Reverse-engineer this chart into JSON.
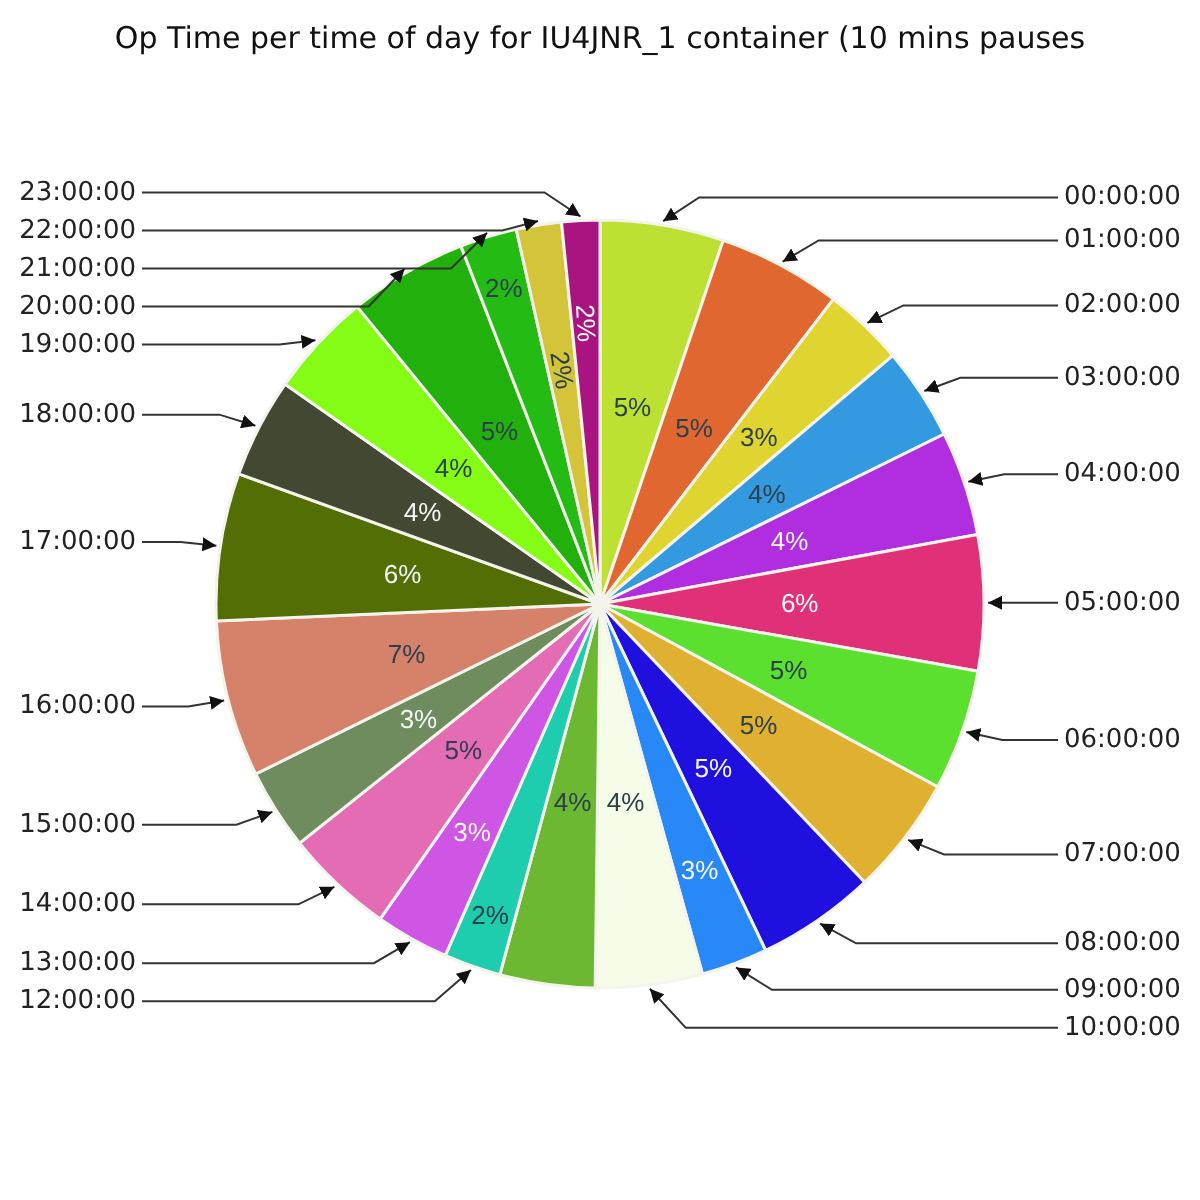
{
  "chart_data": {
    "type": "pie",
    "title": "Op Time per time of day for IU4JNR_1 container (10 mins pauses",
    "categories": [
      "00:00:00",
      "01:00:00",
      "02:00:00",
      "03:00:00",
      "04:00:00",
      "05:00:00",
      "06:00:00",
      "07:00:00",
      "08:00:00",
      "09:00:00",
      "10:00:00",
      null,
      "12:00:00",
      "13:00:00",
      "14:00:00",
      "15:00:00",
      "16:00:00",
      "17:00:00",
      "18:00:00",
      "19:00:00",
      "20:00:00",
      "21:00:00",
      "22:00:00",
      "23:00:00"
    ],
    "values": [
      5.2,
      5.2,
      3.4,
      3.9,
      4.4,
      5.7,
      5.1,
      5.0,
      5.0,
      2.8,
      4.5,
      4.0,
      2.4,
      3.1,
      4.6,
      3.4,
      6.6,
      6.2,
      4.2,
      4.4,
      5.0,
      2.4,
      1.9,
      1.6
    ],
    "value_labels": [
      "5%",
      "5%",
      "3%",
      "4%",
      "4%",
      "6%",
      "5%",
      "5%",
      "5%",
      "3%",
      "4%",
      "4%",
      "2%",
      "3%",
      "5%",
      "3%",
      "7%",
      "6%",
      "4%",
      "4%",
      "5%",
      "2%",
      "2%",
      "2%"
    ],
    "colors": [
      "#bde132",
      "#e06830",
      "#e0d530",
      "#3399e0",
      "#b02de0",
      "#e03077",
      "#5ce030",
      "#e0b030",
      "#2010e0",
      "#2888f8",
      "#f5fde8",
      "#6db833",
      "#1dcdae",
      "#cf55e5",
      "#e46cb4",
      "#6e8c5e",
      "#d6826a",
      "#536e05",
      "#434832",
      "#84fc16",
      "#22b00d",
      "#24bb14",
      "#d4c43a",
      "#aa1480"
    ]
  }
}
